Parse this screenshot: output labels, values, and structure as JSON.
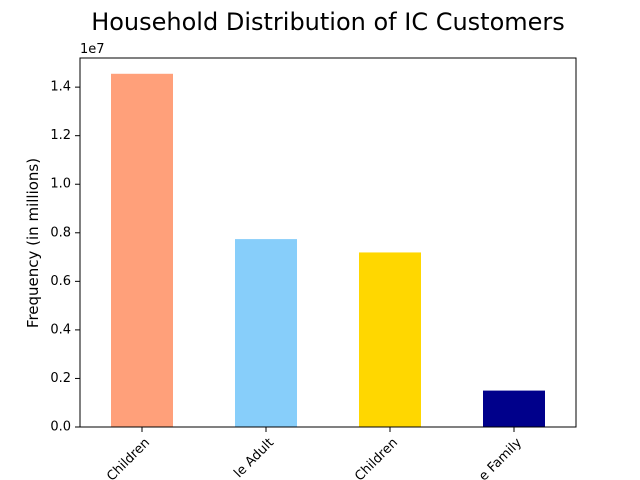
{
  "chart_data": {
    "type": "bar",
    "title": "Household Distribution of IC Customers",
    "xlabel": "",
    "ylabel": "Frequency (in millions)",
    "y_offset_label": "1e7",
    "categories": [
      "Children",
      "le Adult",
      "Children",
      "e Family"
    ],
    "values": [
      14550000,
      7740000,
      7190000,
      1500000
    ],
    "colors": [
      "#FFA07A",
      "#87CEFA",
      "#FFD700",
      "#00008B"
    ],
    "ylim": [
      0,
      15200000
    ],
    "yticks": [
      0,
      2000000,
      4000000,
      6000000,
      8000000,
      10000000,
      12000000,
      14000000
    ],
    "ytick_labels": [
      "0.0",
      "0.2",
      "0.4",
      "0.6",
      "0.8",
      "1.0",
      "1.2",
      "1.4"
    ],
    "x_tick_rotation": 45,
    "grid": false,
    "legend": "none"
  }
}
